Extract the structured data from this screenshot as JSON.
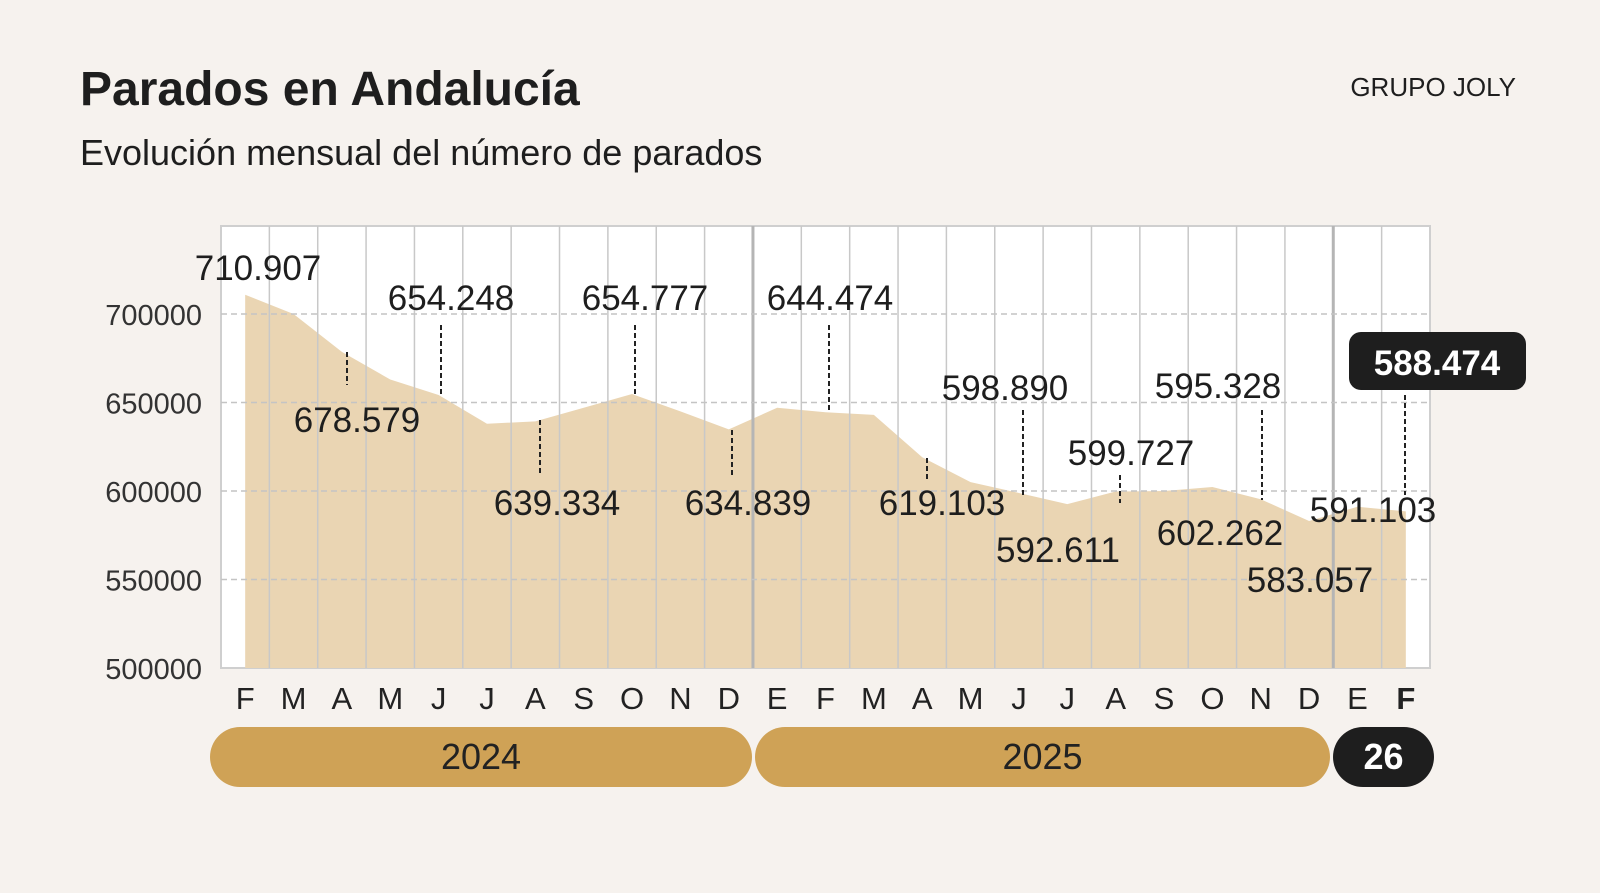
{
  "header": {
    "title": "Parados en Andalucía",
    "subtitle": "Evolución mensual del número de parados",
    "brand": "GRUPO JOLY"
  },
  "chart_data": {
    "type": "area",
    "title": "Parados en Andalucía",
    "subtitle": "Evolución mensual del número de parados",
    "ylim": [
      500000,
      720000
    ],
    "yticks": [
      500000,
      550000,
      600000,
      650000,
      700000
    ],
    "ytick_labels": [
      "500000",
      "550000",
      "600000",
      "650000",
      "700000"
    ],
    "grid": "horizontal dashed + vertical per month",
    "month_labels": [
      "F",
      "M",
      "A",
      "M",
      "J",
      "J",
      "A",
      "S",
      "O",
      "N",
      "D",
      "E",
      "F",
      "M",
      "A",
      "M",
      "J",
      "J",
      "A",
      "S",
      "O",
      "N",
      "D",
      "E",
      "F"
    ],
    "years": [
      {
        "label": "2024",
        "from": 0,
        "to": 10
      },
      {
        "label": "2025",
        "from": 11,
        "to": 22
      },
      {
        "label": "26",
        "from": 23,
        "to": 24
      }
    ],
    "values": [
      710907,
      700000,
      678579,
      663000,
      654248,
      638000,
      639334,
      647000,
      654777,
      645000,
      634839,
      647000,
      644474,
      643000,
      619103,
      605000,
      598890,
      592611,
      599727,
      600000,
      602262,
      595328,
      583057,
      591103,
      588474
    ],
    "data_labels": [
      {
        "index": 0,
        "text": "710.907"
      },
      {
        "index": 2,
        "text": "678.579"
      },
      {
        "index": 4,
        "text": "654.248"
      },
      {
        "index": 6,
        "text": "639.334"
      },
      {
        "index": 8,
        "text": "654.777"
      },
      {
        "index": 10,
        "text": "634.839"
      },
      {
        "index": 12,
        "text": "644.474"
      },
      {
        "index": 14,
        "text": "619.103"
      },
      {
        "index": 16,
        "text": "598.890"
      },
      {
        "index": 17,
        "text": "592.611"
      },
      {
        "index": 18,
        "text": "599.727"
      },
      {
        "index": 20,
        "text": "602.262"
      },
      {
        "index": 21,
        "text": "595.328"
      },
      {
        "index": 22,
        "text": "583.057"
      },
      {
        "index": 23,
        "text": "591.103"
      },
      {
        "index": 24,
        "text": "588.474",
        "highlight": true
      }
    ],
    "colors": {
      "area": "#ead5b3",
      "year_pill": "#cfa256",
      "highlight": "#1e1e1e",
      "background": "#f6f2ee"
    }
  }
}
